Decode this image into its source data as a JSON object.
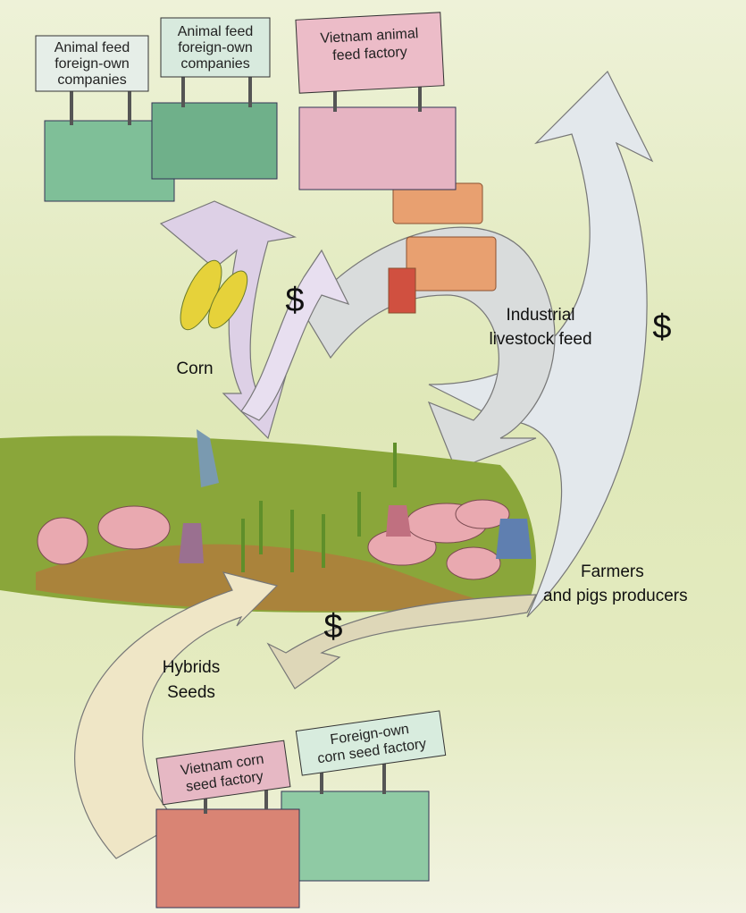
{
  "signs": [
    {
      "lines": [
        "Animal feed",
        "foreign-own",
        "companies"
      ]
    },
    {
      "lines": [
        "Animal feed",
        "foreign-own",
        "companies"
      ]
    },
    {
      "lines": [
        "Vietnam animal",
        "feed factory"
      ]
    },
    {
      "lines": [
        "Vietnam corn",
        "seed factory"
      ]
    },
    {
      "lines": [
        "Foreign-own",
        "corn seed factory"
      ]
    }
  ],
  "flows": {
    "corn": "Corn",
    "feed": [
      "Industrial",
      "livestock feed"
    ],
    "farmers": [
      "Farmers",
      "and pigs producers"
    ],
    "seeds": [
      "Hybrids",
      "Seeds"
    ],
    "money": [
      "$",
      "$",
      "$"
    ]
  }
}
